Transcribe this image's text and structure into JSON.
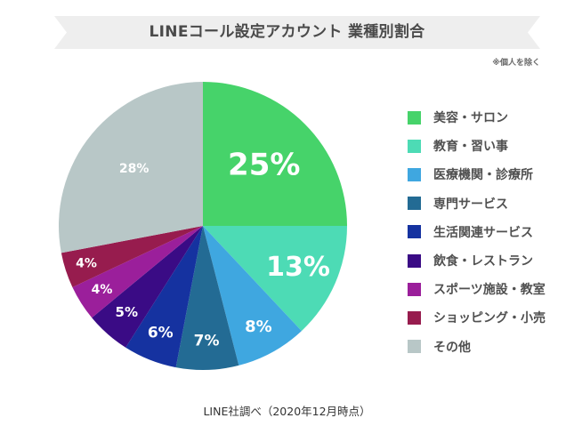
{
  "header": {
    "title": "LINEコール設定アカウント 業種別割合",
    "note": "※個人を除く"
  },
  "footer": {
    "source": "LINE社調べ（2020年12月時点）"
  },
  "colors": {
    "banner": "#eeeeee",
    "title_text": "#4a4a4a"
  },
  "chart_data": {
    "type": "pie",
    "title": "LINEコール設定アカウント 業種別割合",
    "start_angle": "12 o'clock",
    "direction": "clockwise",
    "legend_position": "right",
    "slices": [
      {
        "label": "美容・サロン",
        "value": 25,
        "display": "25%",
        "color": "#46d36a"
      },
      {
        "label": "教育・習い事",
        "value": 13,
        "display": "13%",
        "color": "#4ddbb5"
      },
      {
        "label": "医療機関・診療所",
        "value": 8,
        "display": "8%",
        "color": "#3fa7e0"
      },
      {
        "label": "専門サービス",
        "value": 7,
        "display": "7%",
        "color": "#236b94"
      },
      {
        "label": "生活関連サービス",
        "value": 6,
        "display": "6%",
        "color": "#1532a0"
      },
      {
        "label": "飲食・レストラン",
        "value": 5,
        "display": "5%",
        "color": "#3a0b85"
      },
      {
        "label": "スポーツ施設・教室",
        "value": 4,
        "display": "4%",
        "color": "#9b1f9b"
      },
      {
        "label": "ショッピング・小売",
        "value": 4,
        "display": "4%",
        "color": "#971c4e"
      },
      {
        "label": "その他",
        "value": 28,
        "display": "28%",
        "color": "#b8c7c7"
      }
    ]
  }
}
